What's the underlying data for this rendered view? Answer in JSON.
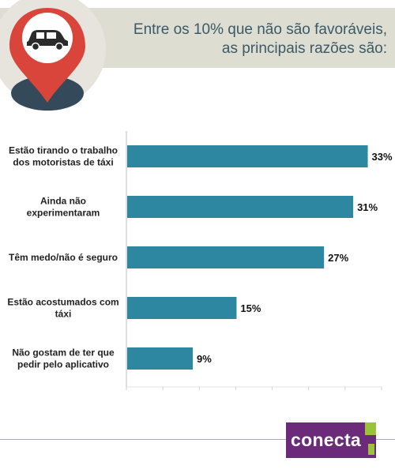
{
  "header": {
    "title_line1": "Entre os 10% que não são favoráveis,",
    "title_line2": "as principais razões são:"
  },
  "icons": {
    "pin": "map-pin-car-icon",
    "logo": "conecta-logo"
  },
  "colors": {
    "bar": "#2e87a0",
    "header_band": "#ddddd2",
    "pin": "#d9453b",
    "logo": "#6b2a7a"
  },
  "chart_data": {
    "type": "bar",
    "orientation": "horizontal",
    "categories": [
      [
        "Estão tirando o trabalho",
        "dos motoristas de táxi"
      ],
      [
        "Ainda não",
        "experimentaram"
      ],
      [
        "Têm medo/não é seguro"
      ],
      [
        "Estão acostumados com",
        "táxi"
      ],
      [
        "Não gostam de ter que",
        "pedir pelo aplicativo"
      ]
    ],
    "values": [
      33,
      31,
      27,
      15,
      9
    ],
    "value_labels": [
      "33%",
      "31%",
      "27%",
      "15%",
      "9%"
    ],
    "xlim": [
      0,
      35
    ],
    "grid": false
  },
  "footer": {
    "logo_text": "conecta"
  }
}
